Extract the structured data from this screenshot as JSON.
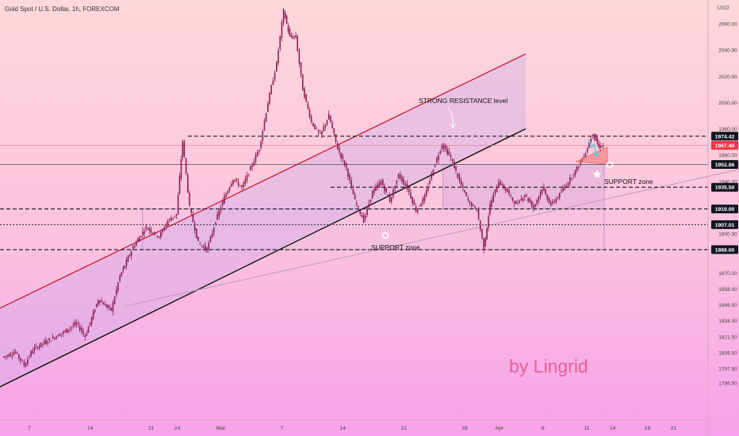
{
  "header": {
    "symbol_title": "Gold Spot / U.S. Dollar, 1h, FOREXCOM"
  },
  "chart_data": {
    "type": "candlestick",
    "currency": "USD",
    "ylim": [
      1779,
      2076
    ],
    "yticks": [
      2060.0,
      2040.0,
      2020.0,
      2000.0,
      1980.0,
      1960.0,
      1940.0,
      1919.0,
      1900.0,
      1888.0,
      1870.0,
      1858.0,
      1846.0,
      1834.0,
      1821.5,
      1809.5,
      1797.5,
      1786.5
    ],
    "xticks": [
      {
        "label": "7",
        "day": 7
      },
      {
        "label": "14",
        "day": 14
      },
      {
        "label": "21",
        "day": 21
      },
      {
        "label": "24",
        "day": 24
      },
      {
        "label": "Mar",
        "day": 29
      },
      {
        "label": "7",
        "day": 36
      },
      {
        "label": "14",
        "day": 43
      },
      {
        "label": "21",
        "day": 50
      },
      {
        "label": "28",
        "day": 57
      },
      {
        "label": "Apr",
        "day": 61
      },
      {
        "label": "6",
        "day": 66
      },
      {
        "label": "11",
        "day": 71
      },
      {
        "label": "14",
        "day": 74
      },
      {
        "label": "18",
        "day": 78
      },
      {
        "label": "21",
        "day": 81
      }
    ],
    "price_badges": [
      {
        "value": "1974.42",
        "style": "dark"
      },
      {
        "value": "1967.40",
        "style": "red"
      },
      {
        "value": "1952.86",
        "style": "dark"
      },
      {
        "value": "1935.50",
        "style": "dark"
      },
      {
        "value": "1919.00",
        "style": "dark"
      },
      {
        "value": "1907.01",
        "style": "dark"
      },
      {
        "value": "1888.00",
        "style": "dark"
      }
    ],
    "price_path": [
      {
        "day": 4.0,
        "price": 1806
      },
      {
        "day": 5.5,
        "price": 1810
      },
      {
        "day": 6.5,
        "price": 1800
      },
      {
        "day": 7.5,
        "price": 1812
      },
      {
        "day": 9.0,
        "price": 1818
      },
      {
        "day": 11.0,
        "price": 1825
      },
      {
        "day": 12.5,
        "price": 1832
      },
      {
        "day": 13.5,
        "price": 1822
      },
      {
        "day": 15.0,
        "price": 1850
      },
      {
        "day": 16.5,
        "price": 1842
      },
      {
        "day": 17.5,
        "price": 1868
      },
      {
        "day": 19.0,
        "price": 1890
      },
      {
        "day": 20.5,
        "price": 1905
      },
      {
        "day": 22.0,
        "price": 1898
      },
      {
        "day": 23.0,
        "price": 1910
      },
      {
        "day": 24.0,
        "price": 1915
      },
      {
        "day": 24.7,
        "price": 1971
      },
      {
        "day": 25.5,
        "price": 1920
      },
      {
        "day": 26.5,
        "price": 1893
      },
      {
        "day": 27.5,
        "price": 1888
      },
      {
        "day": 28.5,
        "price": 1910
      },
      {
        "day": 29.5,
        "price": 1928
      },
      {
        "day": 30.5,
        "price": 1942
      },
      {
        "day": 31.5,
        "price": 1935
      },
      {
        "day": 32.5,
        "price": 1950
      },
      {
        "day": 33.5,
        "price": 1965
      },
      {
        "day": 34.5,
        "price": 2000
      },
      {
        "day": 35.5,
        "price": 2030
      },
      {
        "day": 36.3,
        "price": 2070
      },
      {
        "day": 37.0,
        "price": 2050
      },
      {
        "day": 37.7,
        "price": 2050
      },
      {
        "day": 38.5,
        "price": 2010
      },
      {
        "day": 39.5,
        "price": 1985
      },
      {
        "day": 40.5,
        "price": 1975
      },
      {
        "day": 41.5,
        "price": 1990
      },
      {
        "day": 42.5,
        "price": 1965
      },
      {
        "day": 43.5,
        "price": 1950
      },
      {
        "day": 44.5,
        "price": 1925
      },
      {
        "day": 45.5,
        "price": 1910
      },
      {
        "day": 46.5,
        "price": 1932
      },
      {
        "day": 47.5,
        "price": 1940
      },
      {
        "day": 48.5,
        "price": 1925
      },
      {
        "day": 49.5,
        "price": 1945
      },
      {
        "day": 50.5,
        "price": 1935
      },
      {
        "day": 51.5,
        "price": 1918
      },
      {
        "day": 52.5,
        "price": 1928
      },
      {
        "day": 53.5,
        "price": 1950
      },
      {
        "day": 54.5,
        "price": 1968
      },
      {
        "day": 55.5,
        "price": 1958
      },
      {
        "day": 56.5,
        "price": 1940
      },
      {
        "day": 57.5,
        "price": 1925
      },
      {
        "day": 58.5,
        "price": 1918
      },
      {
        "day": 59.3,
        "price": 1889
      },
      {
        "day": 60.0,
        "price": 1922
      },
      {
        "day": 61.0,
        "price": 1940
      },
      {
        "day": 62.0,
        "price": 1932
      },
      {
        "day": 63.0,
        "price": 1922
      },
      {
        "day": 64.0,
        "price": 1930
      },
      {
        "day": 65.0,
        "price": 1920
      },
      {
        "day": 66.0,
        "price": 1935
      },
      {
        "day": 67.0,
        "price": 1922
      },
      {
        "day": 68.0,
        "price": 1930
      },
      {
        "day": 69.0,
        "price": 1940
      },
      {
        "day": 70.0,
        "price": 1950
      },
      {
        "day": 71.0,
        "price": 1962
      },
      {
        "day": 71.8,
        "price": 1977
      },
      {
        "day": 72.5,
        "price": 1966
      },
      {
        "day": 73.0,
        "price": 1967.4
      }
    ],
    "horizontal_levels": [
      {
        "price": 1974.42,
        "style": "dashed"
      },
      {
        "price": 1967.4,
        "style": "thin"
      },
      {
        "price": 1952.86,
        "style": "solid"
      },
      {
        "price": 1935.5,
        "style": "dashed"
      },
      {
        "price": 1919.0,
        "style": "dashed"
      },
      {
        "price": 1907.01,
        "style": "dotted"
      },
      {
        "price": 1888.0,
        "style": "dashed"
      }
    ],
    "channel": {
      "upper": {
        "start": {
          "day": 1,
          "price": 1835
        },
        "end": {
          "day": 64,
          "price": 2037
        }
      },
      "lower": {
        "start": {
          "day": 1,
          "price": 1775
        },
        "end": {
          "day": 64,
          "price": 1980
        }
      }
    },
    "trendline": {
      "start": {
        "day": 18,
        "price": 1845
      },
      "end": {
        "day": 100,
        "price": 1966
      }
    },
    "zones": [
      {
        "name": "lower-range-zone",
        "from_day": 20,
        "to_day": 100,
        "low": 1888,
        "high": 1919
      },
      {
        "name": "upper-range-zone",
        "from_day": 54.5,
        "to_day": 100,
        "low": 1919,
        "high": 1952.86
      }
    ],
    "annotations": {
      "strong_resistance": "STRONG RESISTANCE level",
      "support_zone_1": "SUPPORT zone",
      "support_zone_2": "SUPPORT zone",
      "watermark": "by Lingrid"
    }
  },
  "colors": {
    "bg_top": "#fdd6d9",
    "bg_bottom": "#f9a8ea",
    "candle": "#8a1e54",
    "channel_up": "#c8102e",
    "channel_dn": "#101010",
    "badge_dark": "#131722",
    "badge_red": "#f23645",
    "watermark": "#e5629a",
    "arrow": "#4dd0e1"
  }
}
